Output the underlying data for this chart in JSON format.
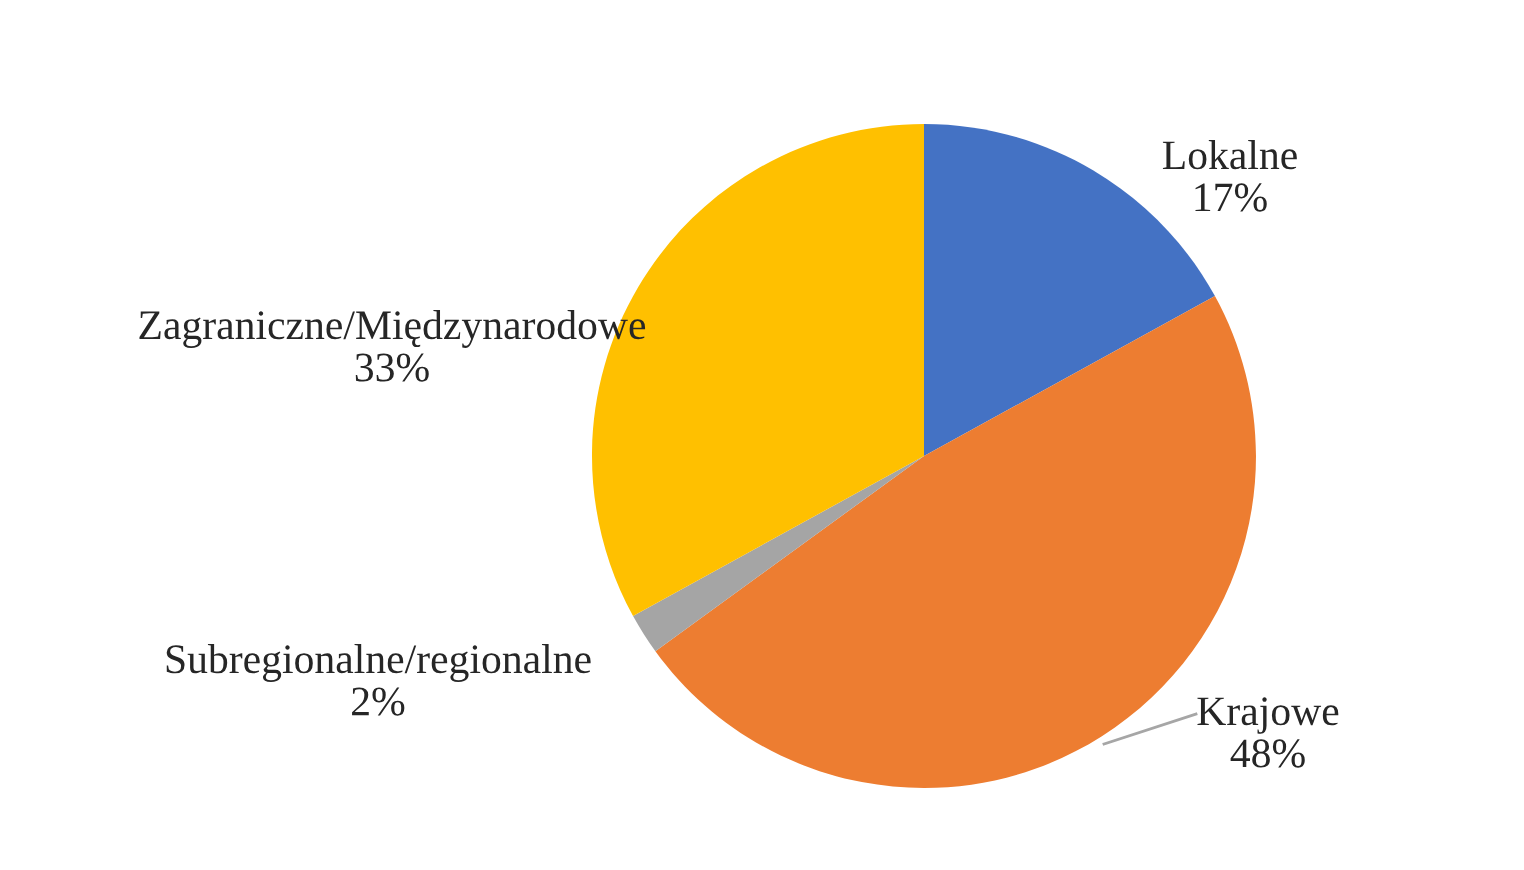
{
  "chart_data": {
    "type": "pie",
    "categories": [
      "Lokalne",
      "Krajowe",
      "Subregionalne/regionalne",
      "Zagraniczne/Międzynarodowe"
    ],
    "values": [
      17,
      48,
      2,
      33
    ],
    "value_labels": [
      "17%",
      "48%",
      "2%",
      "33%"
    ],
    "colors": [
      "#4472c4",
      "#ed7d31",
      "#a5a5a5",
      "#ffc000"
    ],
    "legend": false
  }
}
